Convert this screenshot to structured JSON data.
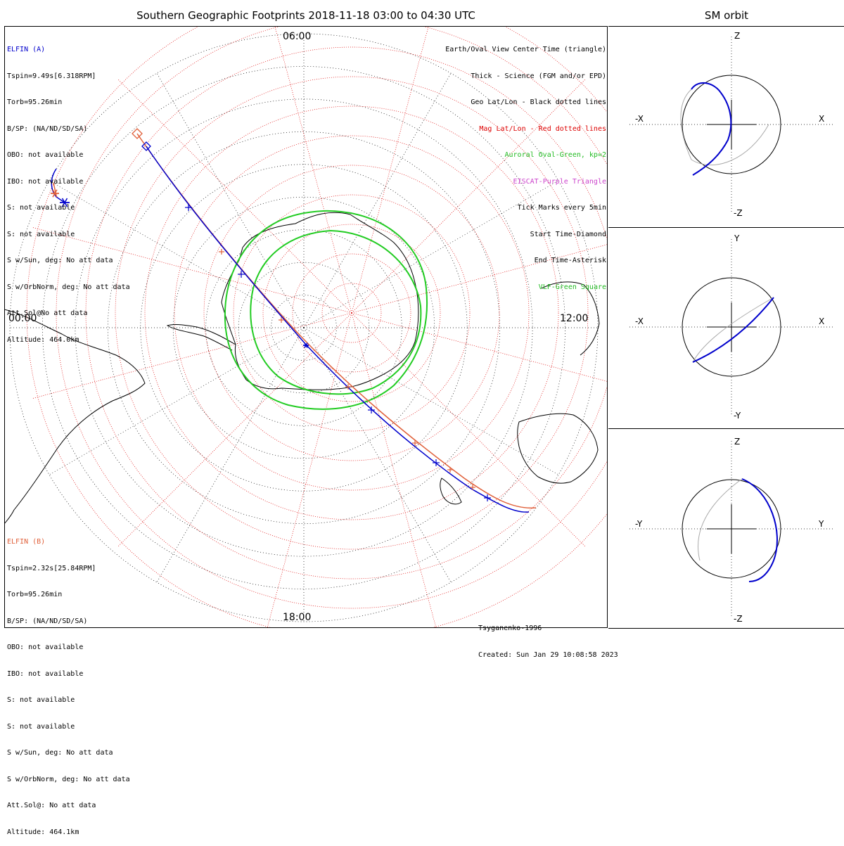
{
  "title": "Southern Geographic Footprints 2018-11-18 03:00 to 04:30 UTC",
  "sm_title": "SM orbit",
  "time_labels": {
    "top": "06:00",
    "left": "00:00",
    "right": "12:00",
    "bottom": "18:00"
  },
  "elfin_a": {
    "name": "ELFIN (A)",
    "lines": [
      "Tspin=9.49s[6.318RPM]",
      "Torb=95.26min",
      "B/SP: (NA/ND/SD/SA)",
      "OBO: not available",
      "IBO: not available",
      "S: not available",
      "S: not available",
      "S w/Sun, deg: No att data",
      "S w/OrbNorm, deg: No att data",
      "Att.Sol@No att data",
      "Altitude: 464.0km"
    ],
    "color": "#0000cc"
  },
  "elfin_b": {
    "name": "ELFIN (B)",
    "lines": [
      "Tspin=2.32s[25.84RPM]",
      "Torb=95.26min",
      "B/SP: (NA/ND/SD/SA)",
      "OBO: not available",
      "IBO: not available",
      "S: not available",
      "S: not available",
      "S w/Sun, deg: No att data",
      "S w/OrbNorm, deg: No att data",
      "Att.Sol@: No att data",
      "Altitude: 464.1km"
    ],
    "color": "#e0603a"
  },
  "legend": [
    {
      "text": "Earth/Oval View Center Time (triangle)",
      "color": "#000000"
    },
    {
      "text": "Thick - Science (FGM and/or EPD)",
      "color": "#000000"
    },
    {
      "text": "Geo Lat/Lon - Black dotted lines",
      "color": "#000000"
    },
    {
      "text": "Mag Lat/Lon - Red dotted lines",
      "color": "#dd0000"
    },
    {
      "text": "Auroral Oval-Green, kp=2",
      "color": "#22bb22"
    },
    {
      "text": "EISCAT-Purple Triangle",
      "color": "#cc44cc"
    },
    {
      "text": "Tick Marks every 5min",
      "color": "#000000"
    },
    {
      "text": "Start Time-Diamond",
      "color": "#000000"
    },
    {
      "text": "End Time-Asterisk",
      "color": "#000000"
    },
    {
      "text": "VLF-Green Square",
      "color": "#22bb22"
    }
  ],
  "credit": {
    "model": "Tsyganenko-1996",
    "created": "Created: Sun Jan 29 10:08:58 2023"
  },
  "sm_panels": [
    {
      "top": "Z",
      "bottom": "-Z",
      "left": "-X",
      "right": "X"
    },
    {
      "top": "Y",
      "bottom": "-Y",
      "left": "-X",
      "right": "X"
    },
    {
      "top": "Z",
      "bottom": "-Z",
      "left": "-Y",
      "right": "Y"
    }
  ],
  "colors": {
    "elfin_a": "#0000cc",
    "elfin_b": "#e0603a",
    "oval": "#22cc22",
    "mag_grid": "#dd0000"
  }
}
